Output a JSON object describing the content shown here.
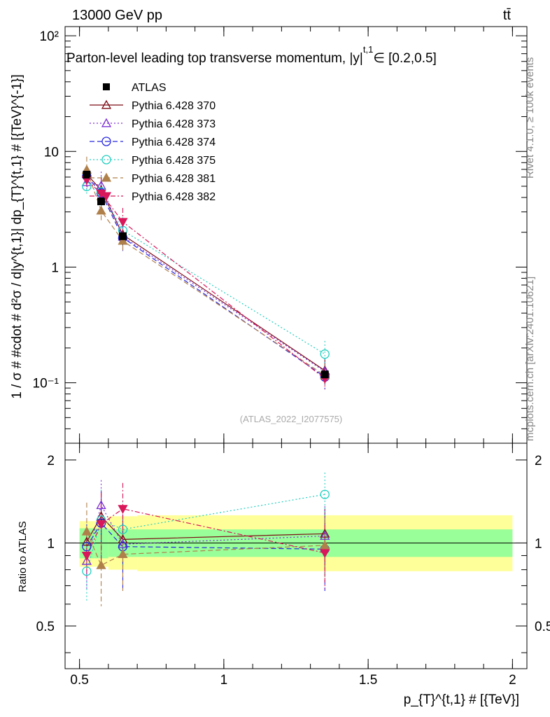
{
  "header": {
    "left": "13000 GeV pp",
    "right": "tt̄",
    "title": "Parton-level leading top transverse momentum, |y|",
    "title_sup": "t,1",
    "title_range": "∈ [0.2,0.5]",
    "side_top": "Rivet 4.1.0, ≥ 100k events",
    "side_bottom": "mcplots.cern.ch [arXiv:2401.10621]",
    "watermark": "(ATLAS_2022_I2077575)"
  },
  "chart_data": {
    "type": "scatter",
    "xlabel": "p_{T}^{t,1} # [{TeV}]",
    "ylabel": "1 / σ # #cdot # d²σ / d|y^{t,1}| dp_{T}^{t,1} # [{TeV}^{-1}]",
    "ratio_ylabel": "Ratio to ATLAS",
    "xlim": [
      0.45,
      2.05
    ],
    "ylim_log": [
      0.03,
      120
    ],
    "ratio_ylim": [
      0.35,
      2.3
    ],
    "x_ticks": [
      0.5,
      1,
      1.5,
      2
    ],
    "x_tick_labels": [
      "0.5",
      "1",
      "1.5",
      "2"
    ],
    "y_ticks": [
      0.1,
      1,
      10,
      100
    ],
    "y_tick_labels": [
      "10⁻¹",
      "1",
      "10",
      "10²"
    ],
    "ratio_ticks": [
      0.5,
      1,
      2
    ],
    "ratio_tick_labels": [
      "0.5",
      "1",
      "2"
    ],
    "bins": [
      [
        0.5,
        0.55
      ],
      [
        0.55,
        0.6
      ],
      [
        0.6,
        0.7
      ],
      [
        0.7,
        2.0
      ]
    ],
    "x": [
      0.525,
      0.575,
      0.65,
      1.35
    ],
    "band_inner": [
      [
        0.88,
        1.13
      ],
      [
        0.88,
        1.13
      ],
      [
        0.89,
        1.12
      ],
      [
        0.89,
        1.12
      ]
    ],
    "band_outer": [
      [
        0.82,
        1.2
      ],
      [
        0.82,
        1.2
      ],
      [
        0.8,
        1.25
      ],
      [
        0.79,
        1.26
      ]
    ],
    "data": {
      "name": "ATLAS",
      "values": [
        6.3,
        3.7,
        1.85,
        0.118
      ],
      "color": "#000000"
    },
    "series": [
      {
        "name": "Pythia 6.428 370",
        "marker": "triangle-open",
        "color": "#7b0b14",
        "dash": "",
        "ratio": [
          1.01,
          1.25,
          1.03,
          1.08
        ],
        "rerr": [
          0.1,
          0.3,
          0.22,
          0.25
        ]
      },
      {
        "name": "Pythia 6.428 373",
        "marker": "triangle-open",
        "color": "#7b2fd6",
        "dash": "2,3",
        "ratio": [
          0.86,
          1.37,
          0.99,
          1.06
        ],
        "rerr": [
          0.18,
          0.32,
          0.26,
          0.3
        ]
      },
      {
        "name": "Pythia 6.428 374",
        "marker": "circle-open",
        "color": "#2727e0",
        "dash": "7,4",
        "ratio": [
          0.97,
          1.18,
          0.97,
          0.95
        ],
        "rerr": [
          0.2,
          0.35,
          0.3,
          0.28
        ]
      },
      {
        "name": "Pythia 6.428 375",
        "marker": "circle-open",
        "color": "#22cfc0",
        "dash": "2,3",
        "ratio": [
          0.79,
          1.21,
          1.12,
          1.5
        ],
        "rerr": [
          0.18,
          0.35,
          0.3,
          0.3
        ]
      },
      {
        "name": "Pythia 6.428 381",
        "marker": "triangle-filled",
        "color": "#b0804a",
        "dash": "7,4",
        "ratio": [
          1.1,
          0.83,
          0.91,
          0.98
        ],
        "rerr": [
          0.3,
          0.24,
          0.24,
          0.25
        ]
      },
      {
        "name": "Pythia 6.428 382",
        "marker": "triangle-down-filled",
        "color": "#d9175a",
        "dash": "7,3,2,3",
        "ratio": [
          0.9,
          1.17,
          1.33,
          0.92
        ],
        "rerr": [
          0.15,
          0.35,
          0.32,
          0.24
        ]
      }
    ]
  }
}
